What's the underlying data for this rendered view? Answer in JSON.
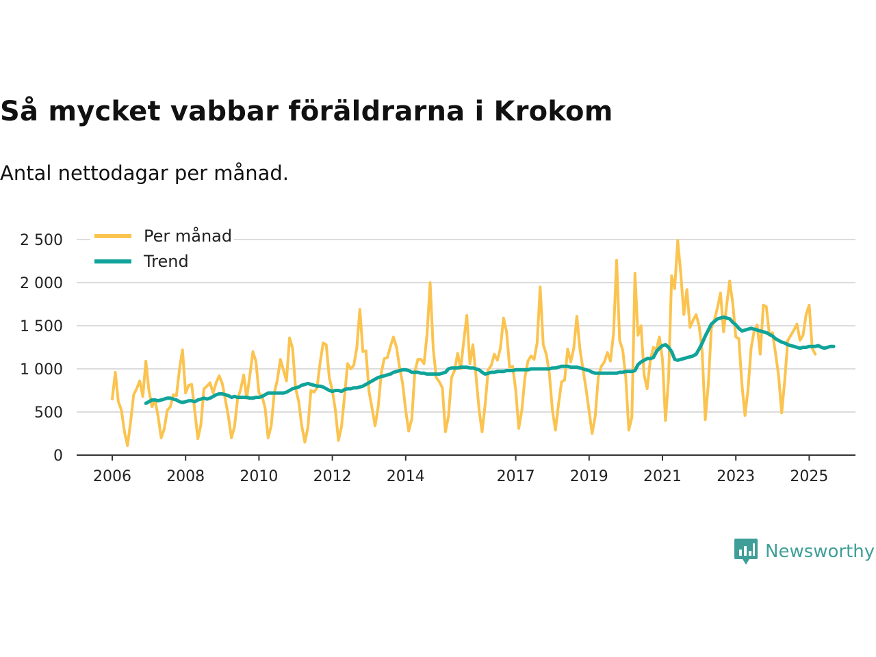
{
  "title": "Så mycket vabbar föräldrarna i Krokom",
  "subtitle": "Antal nettodagar per månad.",
  "brand": {
    "name": "Newsworthy",
    "color": "#3f9e98"
  },
  "colors": {
    "monthly": "#fbc34f",
    "trend": "#10a399",
    "grid": "#dcdcdc",
    "axis": "#333333"
  },
  "chart_data": {
    "type": "line",
    "title": "Så mycket vabbar föräldrarna i Krokom",
    "subtitle": "Antal nettodagar per månad.",
    "xlabel": "",
    "ylabel": "",
    "ylim": [
      0,
      2500
    ],
    "xlim": [
      2006,
      2025.5
    ],
    "y_ticks": [
      0,
      500,
      1000,
      1500,
      2000,
      2500
    ],
    "y_tick_labels": [
      "0",
      "500",
      "1 000",
      "1 500",
      "2 000",
      "2 500"
    ],
    "x_ticks": [
      2006,
      2008,
      2010,
      2012,
      2014,
      2017,
      2019,
      2021,
      2023,
      2025
    ],
    "x_tick_labels": [
      "2006",
      "2008",
      "2010",
      "2012",
      "2014",
      "2017",
      "2019",
      "2021",
      "2023",
      "2025"
    ],
    "grid": true,
    "legend_position": "top-left",
    "series": [
      {
        "name": "Per månad",
        "x_start": 2006.0,
        "x_step": 0.08333,
        "values": [
          650,
          960,
          620,
          520,
          270,
          110,
          380,
          700,
          770,
          860,
          680,
          1090,
          750,
          560,
          640,
          450,
          200,
          300,
          520,
          560,
          700,
          690,
          1000,
          1220,
          720,
          810,
          820,
          510,
          190,
          350,
          770,
          800,
          840,
          720,
          840,
          920,
          830,
          640,
          450,
          200,
          330,
          650,
          760,
          930,
          660,
          920,
          1200,
          1090,
          720,
          680,
          550,
          200,
          340,
          720,
          870,
          1110,
          990,
          860,
          1360,
          1240,
          770,
          620,
          340,
          150,
          320,
          750,
          730,
          780,
          1070,
          1300,
          1280,
          900,
          750,
          520,
          170,
          330,
          690,
          1060,
          1000,
          1040,
          1240,
          1690,
          1200,
          1210,
          740,
          540,
          340,
          560,
          950,
          1120,
          1130,
          1260,
          1370,
          1250,
          1020,
          830,
          520,
          280,
          420,
          970,
          1110,
          1110,
          1060,
          1400,
          2000,
          1240,
          900,
          850,
          780,
          270,
          450,
          900,
          980,
          1180,
          1000,
          1320,
          1620,
          1060,
          1280,
          920,
          530,
          270,
          590,
          990,
          1040,
          1170,
          1100,
          1240,
          1590,
          1430,
          1020,
          1030,
          750,
          310,
          520,
          900,
          1090,
          1150,
          1110,
          1300,
          1950,
          1280,
          1170,
          950,
          520,
          290,
          590,
          850,
          870,
          1230,
          1080,
          1240,
          1610,
          1230,
          1000,
          770,
          510,
          250,
          450,
          900,
          1030,
          1080,
          1190,
          1090,
          1410,
          2260,
          1330,
          1220,
          900,
          290,
          440,
          2110,
          1390,
          1500,
          930,
          770,
          1090,
          1250,
          1220,
          1370,
          1110,
          400,
          890,
          2080,
          1930,
          2490,
          2100,
          1630,
          1920,
          1480,
          1560,
          1630,
          1500,
          1200,
          410,
          820,
          1470,
          1570,
          1710,
          1880,
          1430,
          1740,
          2020,
          1760,
          1370,
          1350,
          820,
          460,
          760,
          1240,
          1440,
          1510,
          1170,
          1740,
          1720,
          1390,
          1420,
          1180,
          920,
          490,
          860,
          1330,
          1390,
          1450,
          1520,
          1330,
          1390,
          1630,
          1740,
          1240,
          1170
        ]
      },
      {
        "name": "Trend",
        "x_start": 2006.917,
        "x_step": 0.08333,
        "values": [
          600,
          620,
          640,
          640,
          630,
          640,
          650,
          660,
          660,
          650,
          640,
          620,
          610,
          620,
          630,
          630,
          620,
          640,
          650,
          660,
          650,
          660,
          680,
          700,
          710,
          710,
          700,
          690,
          670,
          680,
          670,
          670,
          670,
          670,
          660,
          660,
          670,
          670,
          680,
          700,
          720,
          720,
          720,
          720,
          720,
          720,
          730,
          750,
          770,
          780,
          790,
          810,
          820,
          830,
          820,
          810,
          800,
          800,
          790,
          770,
          750,
          740,
          750,
          750,
          740,
          760,
          770,
          770,
          780,
          780,
          790,
          800,
          820,
          840,
          860,
          880,
          900,
          910,
          920,
          930,
          940,
          960,
          970,
          980,
          990,
          990,
          980,
          960,
          960,
          960,
          950,
          950,
          940,
          940,
          940,
          940,
          940,
          950,
          960,
          1000,
          1010,
          1010,
          1010,
          1020,
          1020,
          1020,
          1010,
          1010,
          1000,
          990,
          960,
          940,
          950,
          960,
          960,
          970,
          970,
          970,
          980,
          980,
          980,
          990,
          990,
          990,
          990,
          990,
          1000,
          1000,
          1000,
          1000,
          1000,
          1000,
          1000,
          1010,
          1010,
          1020,
          1030,
          1030,
          1030,
          1020,
          1020,
          1020,
          1010,
          1000,
          990,
          980,
          960,
          950,
          950,
          950,
          950,
          950,
          950,
          950,
          950,
          960,
          960,
          970,
          970,
          970,
          980,
          1050,
          1080,
          1100,
          1120,
          1120,
          1130,
          1200,
          1240,
          1270,
          1280,
          1250,
          1200,
          1110,
          1100,
          1110,
          1120,
          1130,
          1140,
          1150,
          1170,
          1230,
          1300,
          1380,
          1450,
          1520,
          1550,
          1580,
          1590,
          1600,
          1590,
          1580,
          1540,
          1510,
          1470,
          1440,
          1450,
          1460,
          1470,
          1460,
          1450,
          1440,
          1430,
          1420,
          1400,
          1380,
          1350,
          1330,
          1310,
          1300,
          1280,
          1270,
          1260,
          1250,
          1240,
          1250,
          1250,
          1260,
          1260,
          1260,
          1270,
          1250,
          1240,
          1250,
          1260,
          1260
        ]
      }
    ]
  }
}
